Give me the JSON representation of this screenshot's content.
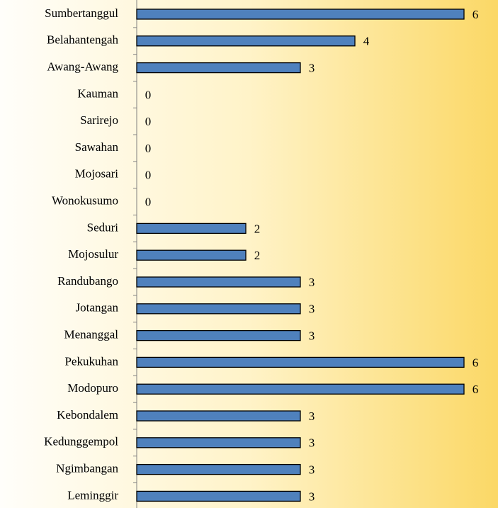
{
  "chart_data": {
    "type": "bar",
    "orientation": "horizontal",
    "categories": [
      "Sumbertanggul",
      "Belahantengah",
      "Awang-Awang",
      "Kauman",
      "Sarirejo",
      "Sawahan",
      "Mojosari",
      "Wonokusumo",
      "Seduri",
      "Mojosulur",
      "Randubango",
      "Jotangan",
      "Menanggal",
      "Pekukuhan",
      "Modopuro",
      "Kebondalem",
      "Kedunggempol",
      "Ngimbangan",
      "Leminggir"
    ],
    "values": [
      6,
      4,
      3,
      0,
      0,
      0,
      0,
      0,
      2,
      2,
      3,
      3,
      3,
      6,
      6,
      3,
      3,
      3,
      3
    ],
    "color": "#4f81bd",
    "xlim": [
      0,
      6
    ]
  }
}
